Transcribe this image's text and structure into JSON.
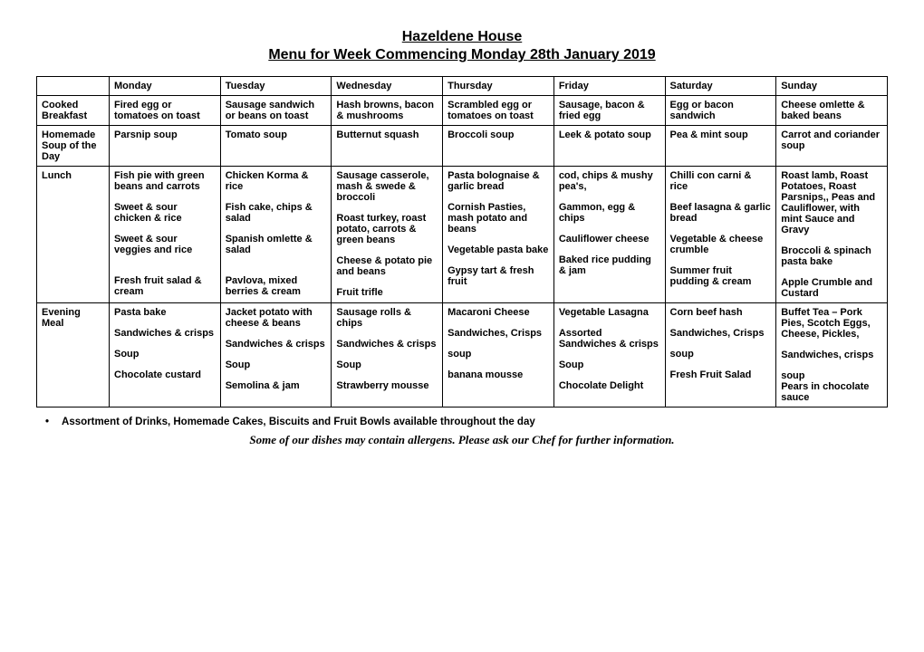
{
  "header": {
    "title": "Hazeldene House",
    "subtitle": "Menu for Week Commencing Monday 28th January 2019"
  },
  "columns": [
    "",
    "Monday",
    "Tuesday",
    "Wednesday",
    "Thursday",
    "Friday",
    "Saturday",
    "Sunday"
  ],
  "rows": [
    {
      "label": "Cooked Breakfast",
      "cells": [
        [
          "Fired egg or tomatoes on toast"
        ],
        [
          "Sausage sandwich or beans on toast"
        ],
        [
          "Hash browns, bacon & mushrooms"
        ],
        [
          "Scrambled egg or tomatoes on toast"
        ],
        [
          "Sausage, bacon & fried egg"
        ],
        [
          "Egg or bacon sandwich"
        ],
        [
          "Cheese omlette & baked beans"
        ]
      ]
    },
    {
      "label": "Homemade Soup of the Day",
      "cells": [
        [
          "Parsnip soup"
        ],
        [
          "Tomato soup"
        ],
        [
          "Butternut squash"
        ],
        [
          "Broccoli soup"
        ],
        [
          "Leek & potato soup"
        ],
        [
          "Pea & mint soup"
        ],
        [
          "Carrot and coriander soup"
        ]
      ]
    },
    {
      "label": "Lunch",
      "cells": [
        [
          "Fish pie with green beans and carrots",
          "",
          "Sweet & sour chicken & rice",
          "",
          "Sweet & sour veggies and rice",
          "",
          "",
          "Fresh fruit salad & cream"
        ],
        [
          "Chicken Korma & rice",
          "",
          "Fish cake, chips & salad",
          "",
          "Spanish omlette & salad",
          "",
          "",
          "Pavlova, mixed berries & cream"
        ],
        [
          "Sausage casserole, mash & swede & broccoli",
          "",
          "Roast turkey, roast potato, carrots & green beans",
          "",
          "Cheese & potato pie and beans",
          "",
          "Fruit trifle"
        ],
        [
          "Pasta bolognaise & garlic bread",
          "",
          "Cornish Pasties, mash potato and beans",
          "",
          "Vegetable pasta bake",
          "",
          "Gypsy tart & fresh fruit"
        ],
        [
          "cod, chips & mushy pea's,",
          "",
          "Gammon, egg & chips",
          "",
          "Cauliflower cheese",
          "",
          "Baked rice pudding & jam"
        ],
        [
          "Chilli con carni & rice",
          "",
          "Beef lasagna & garlic bread",
          "",
          "Vegetable & cheese crumble",
          "",
          "Summer fruit pudding & cream"
        ],
        [
          "Roast lamb, Roast Potatoes, Roast Parsnips,, Peas and Cauliflower, with mint Sauce and Gravy",
          "",
          "Broccoli & spinach pasta bake",
          "",
          "Apple Crumble and Custard"
        ]
      ]
    },
    {
      "label": "Evening Meal",
      "cells": [
        [
          "Pasta bake",
          "",
          "Sandwiches & crisps",
          "",
          "Soup",
          "",
          "Chocolate custard"
        ],
        [
          "Jacket potato with cheese & beans",
          "",
          "Sandwiches & crisps",
          "",
          "Soup",
          "",
          "Semolina & jam"
        ],
        [
          "Sausage rolls & chips",
          "",
          "Sandwiches & crisps",
          "",
          "Soup",
          "",
          "Strawberry mousse"
        ],
        [
          "Macaroni Cheese",
          "",
          "Sandwiches, Crisps",
          "",
          "soup",
          "",
          "banana mousse"
        ],
        [
          "Vegetable Lasagna",
          "",
          "Assorted Sandwiches & crisps",
          "",
          "Soup",
          "",
          "Chocolate Delight"
        ],
        [
          "Corn beef hash",
          "",
          "Sandwiches, Crisps",
          "",
          "soup",
          "",
          "Fresh Fruit Salad"
        ],
        [
          "Buffet Tea – Pork Pies, Scotch Eggs, Cheese, Pickles,",
          "",
          "Sandwiches, crisps",
          "",
          "soup",
          "Pears in chocolate sauce"
        ]
      ]
    }
  ],
  "footer": {
    "bullet": "Assortment of Drinks, Homemade Cakes, Biscuits and Fruit Bowls available throughout the day",
    "allergen": "Some of our dishes may contain allergens. Please ask our Chef for further information."
  }
}
